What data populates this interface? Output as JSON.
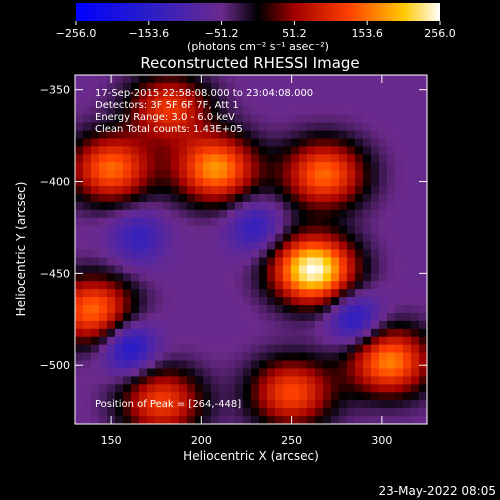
{
  "colorbar": {
    "ticks": [
      "-256.0",
      "-153.6",
      "-51.2",
      "51.2",
      "153.6",
      "256.0"
    ],
    "range": [
      -256,
      256
    ],
    "units_label": "(photons cm⁻² s⁻¹ asec⁻²)"
  },
  "chart_data": {
    "type": "heatmap",
    "title": "Reconstructed RHESSI Image",
    "xlabel": "Heliocentric X (arcsec)",
    "ylabel": "Heliocentric Y (arcsec)",
    "xlim": [
      130,
      325
    ],
    "ylim": [
      -532,
      -342
    ],
    "xticks": [
      150,
      200,
      250,
      300
    ],
    "yticks": [
      -350,
      -400,
      -450,
      -500
    ],
    "annotations": [
      "17-Sep-2015 22:58:08.000 to 23:04:08.000",
      "Detectors: 3F 5F 6F 7F, Att 1",
      "Energy Range: 3.0 - 6.0 keV",
      "Clean    Total counts: 1.43E+05"
    ],
    "peak_label": "Position of Peak = [264,-448]",
    "peak": [
      264,
      -448
    ],
    "sources": [
      {
        "x": 262,
        "y": -448,
        "peak": 256
      },
      {
        "x": 208,
        "y": -393,
        "peak": 175
      },
      {
        "x": 268,
        "y": -396,
        "peak": 150
      },
      {
        "x": 150,
        "y": -393,
        "peak": 150
      },
      {
        "x": 140,
        "y": -470,
        "peak": 150
      },
      {
        "x": 304,
        "y": -498,
        "peak": 165
      },
      {
        "x": 250,
        "y": -515,
        "peak": 130
      },
      {
        "x": 182,
        "y": -360,
        "peak": 110
      },
      {
        "x": 178,
        "y": -520,
        "peak": 120
      }
    ],
    "negatives": [
      {
        "x": 160,
        "y": -490,
        "value": -130
      },
      {
        "x": 285,
        "y": -475,
        "value": -120
      },
      {
        "x": 230,
        "y": -425,
        "value": -90
      },
      {
        "x": 165,
        "y": -430,
        "value": -80
      }
    ]
  },
  "footer": {
    "timestamp": "23-May-2022 08:05"
  }
}
